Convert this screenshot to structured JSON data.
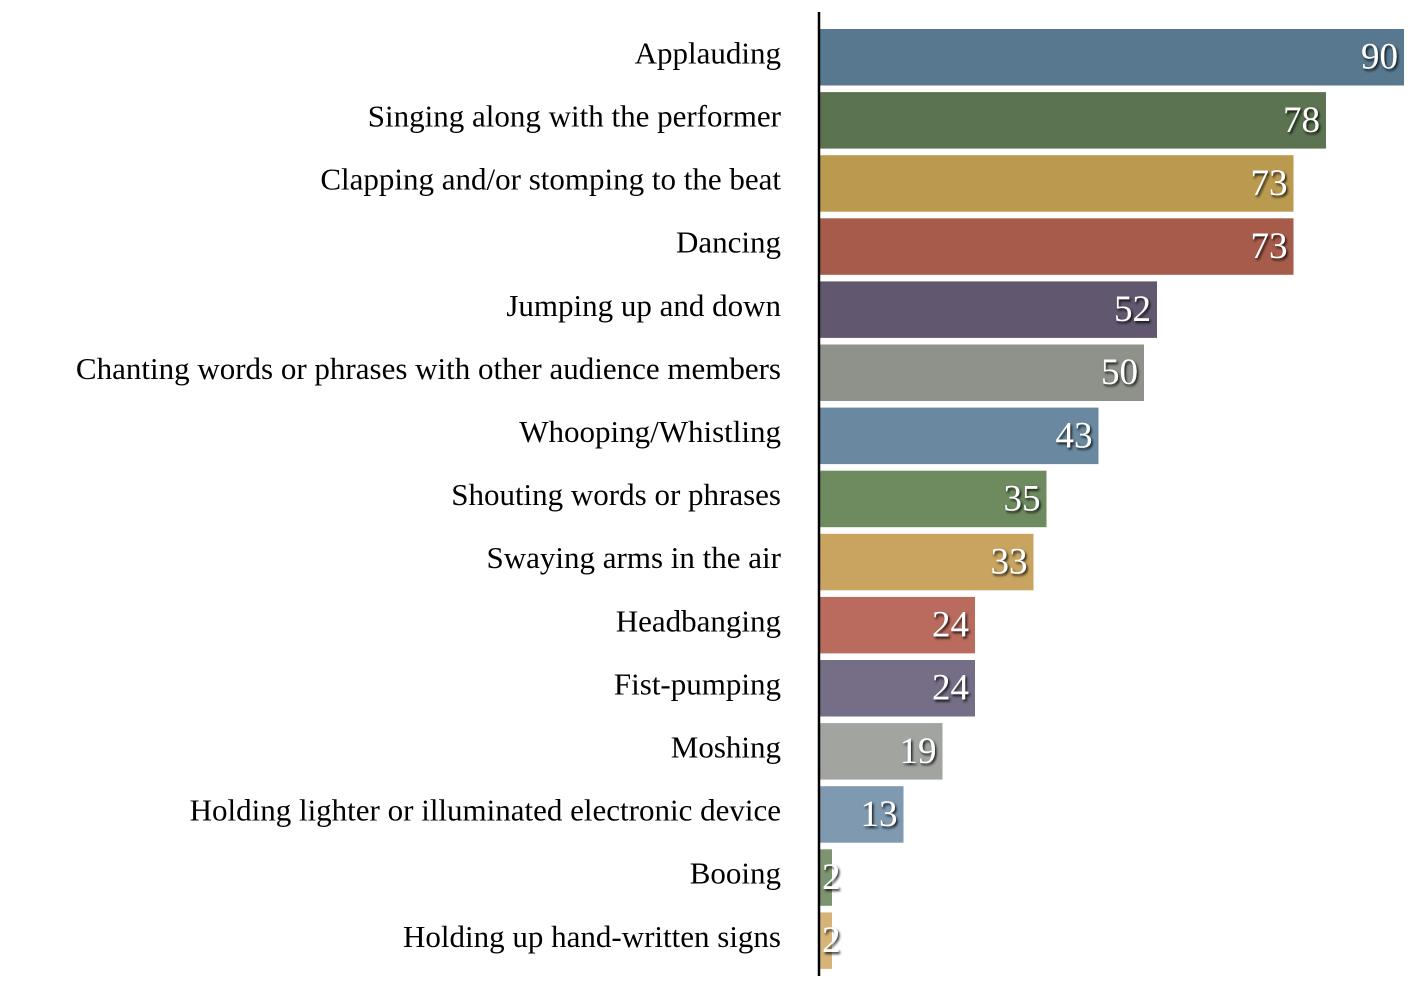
{
  "chart_data": {
    "type": "bar",
    "orientation": "horizontal",
    "title": "",
    "xlabel": "",
    "ylabel": "",
    "xlim": [
      0,
      90
    ],
    "grid": false,
    "legend": "none",
    "categories": [
      "Applauding",
      "Singing along with the performer",
      "Clapping and/or stomping to the beat",
      "Dancing",
      "Jumping up and down",
      "Chanting words or phrases with other audience members",
      "Whooping/Whistling",
      "Shouting words or phrases",
      "Swaying arms in the air",
      "Headbanging",
      "Fist-pumping",
      "Moshing",
      "Holding lighter or illuminated electronic device",
      "Booing",
      "Holding up hand-written signs"
    ],
    "values": [
      90,
      78,
      73,
      73,
      52,
      50,
      43,
      35,
      33,
      24,
      24,
      19,
      13,
      2,
      2
    ],
    "colors": [
      "#57788f",
      "#5b7350",
      "#b99a4f",
      "#a75b4b",
      "#61576e",
      "#8e928a",
      "#6a89a0",
      "#6d8b5f",
      "#c8a460",
      "#b96b5d",
      "#766d86",
      "#a2a4a0",
      "#7f99b0",
      "#7d9470",
      "#d6b479"
    ]
  }
}
